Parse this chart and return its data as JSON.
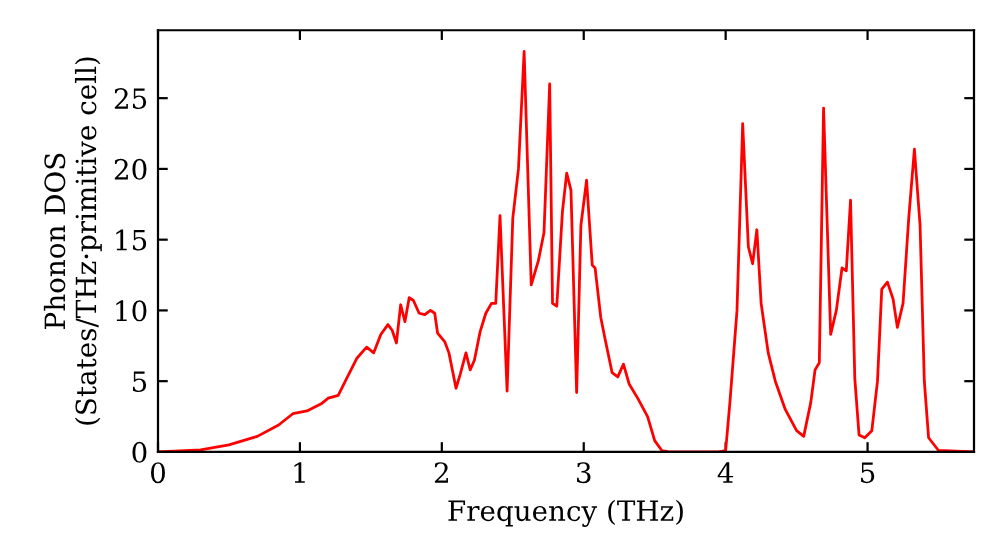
{
  "chart_data": {
    "type": "line",
    "xlabel": "Frequency (THz)",
    "ylabel": "Phonon DOS\n(States/THz·primitive cell)",
    "xlim": [
      0,
      5.75
    ],
    "ylim": [
      0,
      29.8
    ],
    "xticks": [
      0,
      1,
      2,
      3,
      4,
      5
    ],
    "yticks": [
      0,
      5,
      10,
      15,
      20,
      25
    ],
    "grid": false,
    "marker": "none",
    "line_style": "solid",
    "series": [
      {
        "color": "#ff0000",
        "x": [
          0,
          0.3,
          0.5,
          0.7,
          0.85,
          0.95,
          1.05,
          1.15,
          1.2,
          1.27,
          1.32,
          1.4,
          1.47,
          1.52,
          1.57,
          1.62,
          1.65,
          1.68,
          1.71,
          1.74,
          1.77,
          1.8,
          1.84,
          1.88,
          1.92,
          1.95,
          1.97,
          2.02,
          2.05,
          2.08,
          2.1,
          2.13,
          2.17,
          2.2,
          2.23,
          2.27,
          2.31,
          2.35,
          2.38,
          2.41,
          2.46,
          2.5,
          2.54,
          2.58,
          2.63,
          2.68,
          2.72,
          2.76,
          2.78,
          2.81,
          2.85,
          2.88,
          2.91,
          2.95,
          2.98,
          3.02,
          3.06,
          3.08,
          3.12,
          3.15,
          3.2,
          3.24,
          3.28,
          3.32,
          3.38,
          3.45,
          3.5,
          3.55,
          3.6,
          3.95,
          4.0,
          4.03,
          4.08,
          4.12,
          4.16,
          4.19,
          4.22,
          4.25,
          4.3,
          4.35,
          4.42,
          4.5,
          4.55,
          4.6,
          4.63,
          4.66,
          4.69,
          4.74,
          4.78,
          4.82,
          4.85,
          4.88,
          4.91,
          4.94,
          4.98,
          5.03,
          5.07,
          5.1,
          5.14,
          5.18,
          5.21,
          5.25,
          5.29,
          5.33,
          5.37,
          5.4,
          5.43,
          5.5,
          5.75
        ],
        "values": [
          0,
          0.15,
          0.5,
          1.1,
          1.9,
          2.7,
          2.9,
          3.4,
          3.8,
          4.0,
          5.0,
          6.6,
          7.4,
          7.0,
          8.3,
          9.0,
          8.6,
          7.7,
          10.4,
          9.2,
          10.9,
          10.7,
          9.8,
          9.7,
          10.0,
          9.8,
          8.4,
          7.8,
          7.0,
          5.5,
          4.5,
          5.5,
          7.0,
          5.8,
          6.5,
          8.5,
          9.8,
          10.5,
          10.5,
          16.7,
          4.3,
          16.5,
          20.0,
          28.3,
          11.8,
          13.5,
          15.5,
          26.0,
          10.5,
          10.3,
          17.0,
          19.7,
          18.5,
          4.2,
          16,
          19.2,
          13.2,
          13.0,
          9.5,
          8,
          5.6,
          5.3,
          6.2,
          4.8,
          3.8,
          2.5,
          0.8,
          0.1,
          0,
          0,
          0.1,
          3.5,
          10,
          23.2,
          14.5,
          13.3,
          15.7,
          10.5,
          7,
          5,
          3,
          1.5,
          1.1,
          3.5,
          5.8,
          6.3,
          24.3,
          8.3,
          10.0,
          13.0,
          12.8,
          17.8,
          5.2,
          1.2,
          1.0,
          1.5,
          5,
          11.5,
          12.0,
          10.8,
          8.8,
          10.5,
          16.5,
          21.4,
          16,
          5,
          1.0,
          0.1,
          0
        ]
      }
    ]
  }
}
